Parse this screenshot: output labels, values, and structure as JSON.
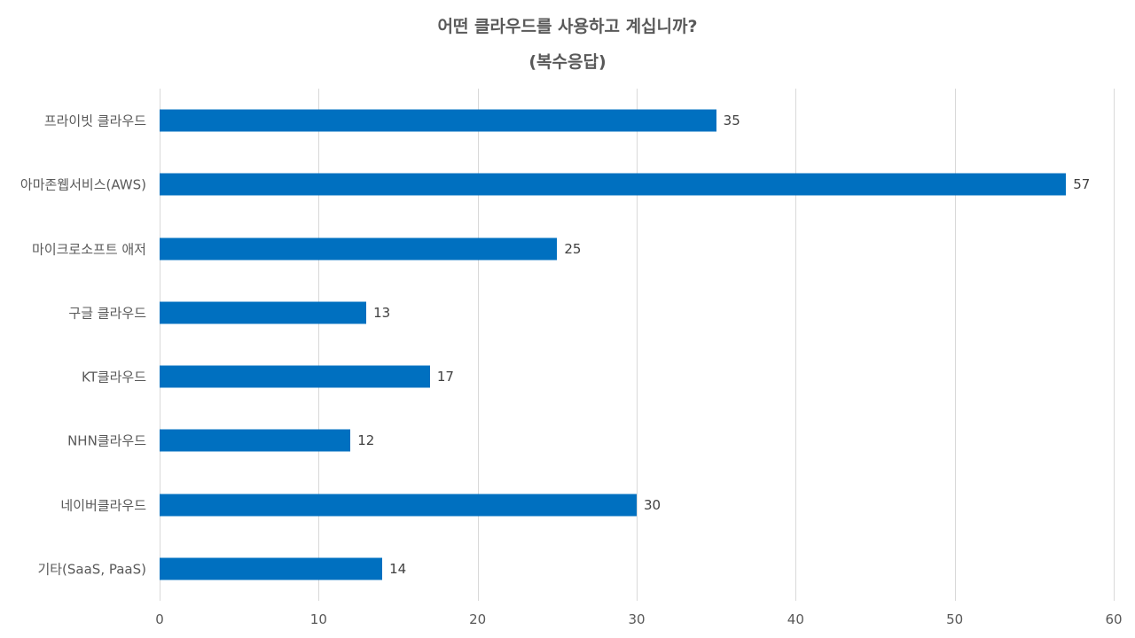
{
  "chart_data": {
    "type": "bar",
    "orientation": "horizontal",
    "title": "어떤 클라우드를 사용하고 계십니까?",
    "subtitle": "(복수응답)",
    "categories": [
      "프라이빗 클라우드",
      "아마존웹서비스(AWS)",
      "마이크로소프트 애저",
      "구글 클라우드",
      "KT클라우드",
      "NHN클라우드",
      "네이버클라우드",
      "기타(SaaS, PaaS)"
    ],
    "values": [
      35,
      57,
      25,
      13,
      17,
      12,
      30,
      14
    ],
    "value_labels": [
      "35",
      "57",
      "25",
      "13",
      "17",
      "12",
      "30",
      "14"
    ],
    "xlabel": "",
    "ylabel": "",
    "xlim": [
      0,
      60
    ],
    "x_ticks": [
      "0",
      "10",
      "20",
      "30",
      "40",
      "50",
      "60"
    ],
    "grid": "vertical",
    "legend": "none",
    "bar_color": "#0070C0",
    "grid_color": "#D9D9D9"
  }
}
